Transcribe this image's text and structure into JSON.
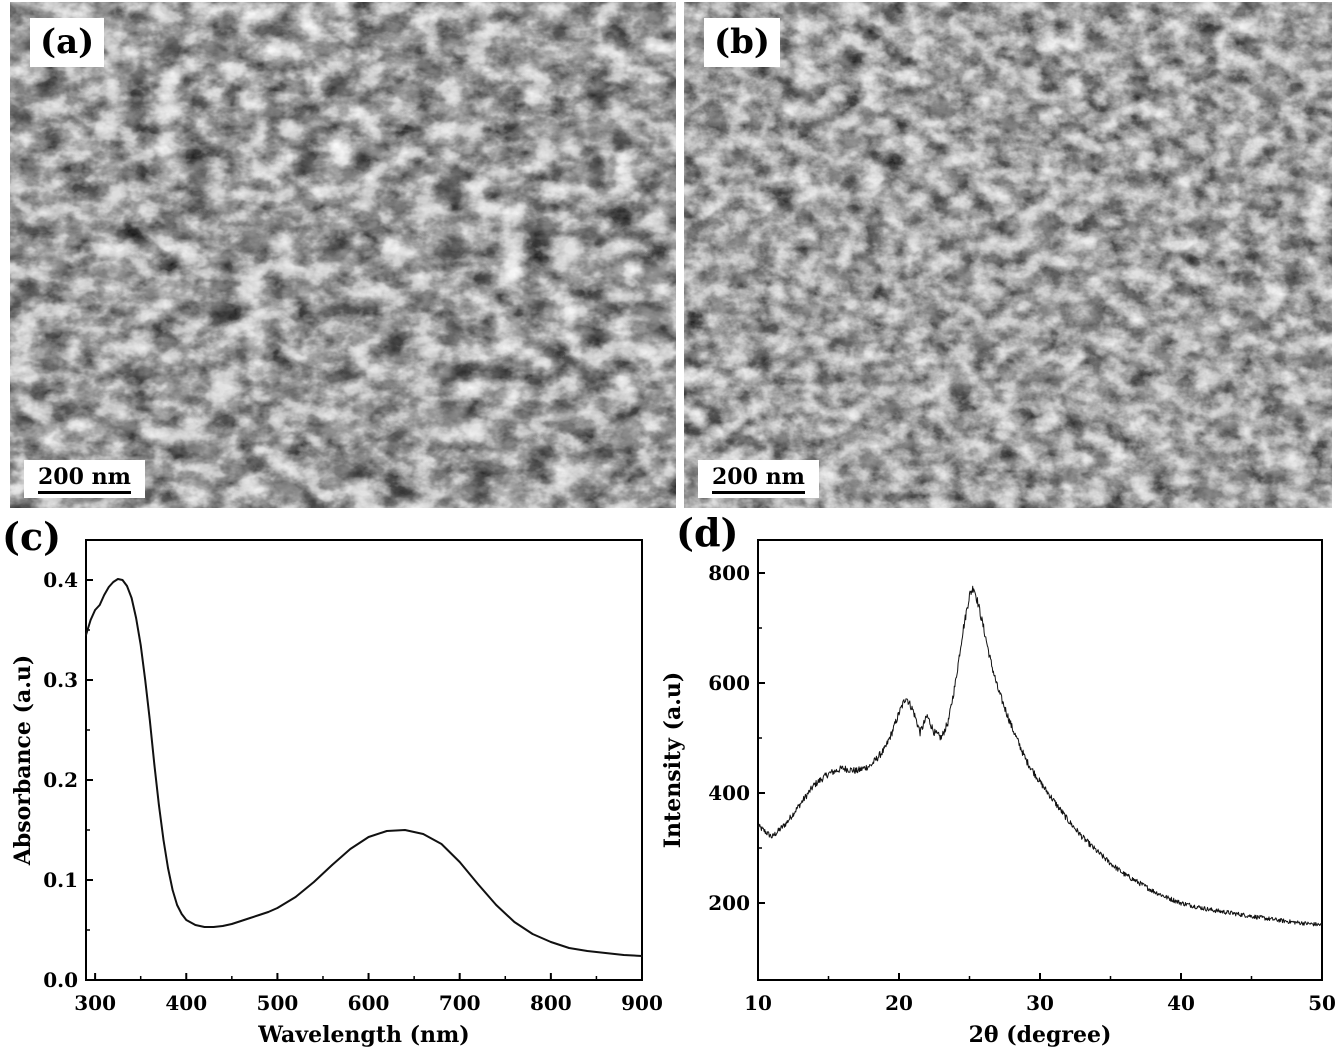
{
  "figure": {
    "panels": {
      "a": {
        "label": "(a)",
        "scale_bar": "200 nm"
      },
      "b": {
        "label": "(b)",
        "scale_bar": "200 nm"
      },
      "c": {
        "label": "(c)"
      },
      "d": {
        "label": "(d)"
      }
    }
  },
  "chart_data": [
    {
      "type": "line",
      "panel": "(c)",
      "xlabel": "Wavelength (nm)",
      "ylabel": "Absorbance (a.u)",
      "xlim": [
        290,
        900
      ],
      "ylim": [
        0.0,
        0.44
      ],
      "xticks": [
        300,
        400,
        500,
        600,
        700,
        800,
        900
      ],
      "yticks": [
        0.0,
        0.1,
        0.2,
        0.3,
        0.4
      ],
      "ytick_labels": [
        "0.0",
        "0.1",
        "0.2",
        "0.3",
        "0.4"
      ],
      "grid": false,
      "series": [
        {
          "x": [
            290,
            295,
            300,
            305,
            310,
            315,
            320,
            325,
            330,
            335,
            340,
            345,
            350,
            355,
            360,
            365,
            370,
            375,
            380,
            385,
            390,
            395,
            400,
            410,
            420,
            430,
            440,
            450,
            460,
            470,
            480,
            490,
            500,
            520,
            540,
            560,
            580,
            600,
            620,
            640,
            660,
            680,
            700,
            720,
            740,
            760,
            780,
            800,
            820,
            840,
            860,
            880,
            900
          ],
          "y": [
            0.345,
            0.36,
            0.37,
            0.375,
            0.385,
            0.393,
            0.398,
            0.401,
            0.4,
            0.394,
            0.382,
            0.362,
            0.335,
            0.3,
            0.26,
            0.215,
            0.175,
            0.14,
            0.112,
            0.09,
            0.075,
            0.066,
            0.06,
            0.055,
            0.053,
            0.053,
            0.054,
            0.056,
            0.059,
            0.062,
            0.065,
            0.068,
            0.072,
            0.083,
            0.098,
            0.115,
            0.131,
            0.143,
            0.149,
            0.15,
            0.146,
            0.136,
            0.118,
            0.096,
            0.075,
            0.058,
            0.046,
            0.038,
            0.032,
            0.029,
            0.027,
            0.025,
            0.024
          ]
        }
      ]
    },
    {
      "type": "line",
      "panel": "(d)",
      "xlabel": "2θ (degree)",
      "ylabel": "Intensity (a.u)",
      "xlim": [
        10,
        50
      ],
      "ylim": [
        60,
        860
      ],
      "xticks": [
        10,
        20,
        30,
        40,
        50
      ],
      "yticks": [
        200,
        400,
        600,
        800
      ],
      "grid": false,
      "series": [
        {
          "x": [
            10,
            11,
            12,
            13,
            14,
            15,
            16,
            17,
            18,
            19,
            19.5,
            20,
            20.5,
            21,
            21.5,
            22,
            22.5,
            23,
            23.5,
            24,
            24.5,
            25,
            25.3,
            25.6,
            26,
            26.5,
            27,
            28,
            29,
            30,
            31,
            32,
            33,
            34,
            35,
            36,
            37,
            38,
            39,
            40,
            42,
            44,
            46,
            48,
            50
          ],
          "y": [
            340,
            320,
            345,
            380,
            415,
            435,
            445,
            440,
            450,
            480,
            510,
            545,
            575,
            550,
            510,
            540,
            510,
            500,
            530,
            600,
            690,
            760,
            775,
            745,
            700,
            640,
            590,
            520,
            460,
            420,
            385,
            350,
            320,
            295,
            272,
            252,
            237,
            222,
            210,
            200,
            188,
            180,
            172,
            165,
            160
          ]
        }
      ]
    }
  ]
}
